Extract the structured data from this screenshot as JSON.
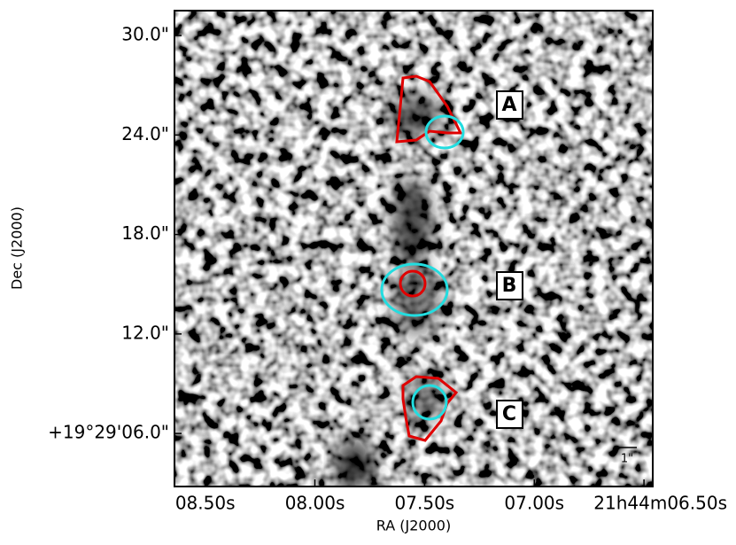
{
  "chart_data": {
    "type": "image",
    "xlabel": "RA (J2000)",
    "ylabel": "Dec (J2000)",
    "xlim": [
      8.64,
      6.46
    ],
    "xticks": [
      {
        "value": 8.5,
        "label": "08.50s"
      },
      {
        "value": 8.0,
        "label": "08.00s"
      },
      {
        "value": 7.5,
        "label": "07.50s"
      },
      {
        "value": 7.0,
        "label": "07.00s"
      },
      {
        "value": 6.5,
        "label": "21h44m06.50s"
      }
    ],
    "ylim": [
      2.8,
      31.5
    ],
    "yticks": [
      {
        "value": 30,
        "label": "30.0\""
      },
      {
        "value": 24,
        "label": "24.0\""
      },
      {
        "value": 18,
        "label": "18.0\""
      },
      {
        "value": 12,
        "label": "12.0\""
      },
      {
        "value": 6,
        "label": "+19°29'06.0\""
      }
    ],
    "annotations": [
      "A",
      "B",
      "C"
    ],
    "scale_bar_label": "1\""
  }
}
